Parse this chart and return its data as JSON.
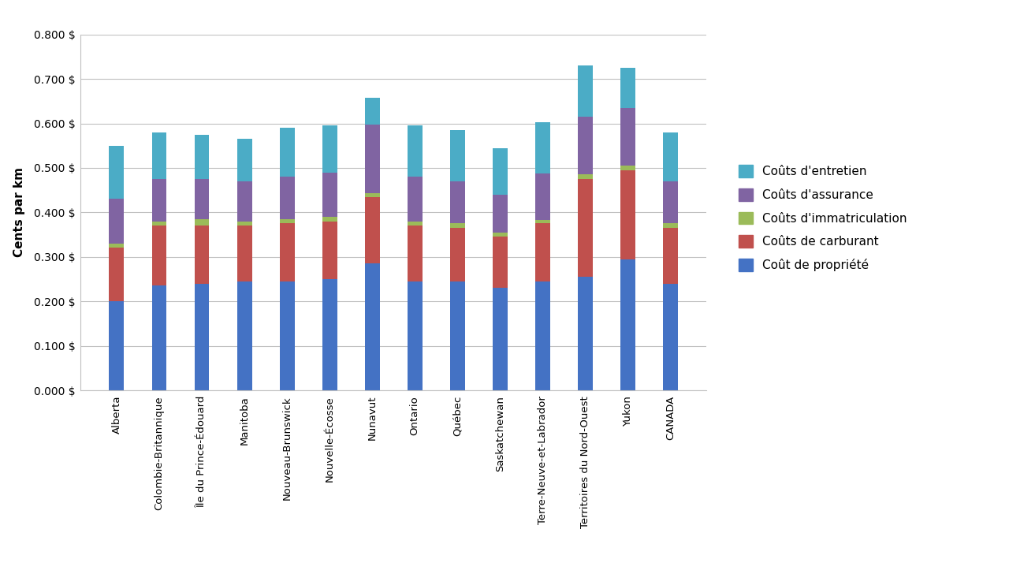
{
  "categories": [
    "Alberta",
    "Colombie-Britannique",
    "Île du Prince-Édouard",
    "Manitoba",
    "Nouveau-Brunswick",
    "Nouvelle-Écosse",
    "Nunavut",
    "Ontario",
    "Québec",
    "Saskatchewan",
    "Terre-Neuve-et-Labrador",
    "Territoires du Nord-Ouest",
    "Yukon",
    "CANADA"
  ],
  "cout_propriete": [
    0.2,
    0.235,
    0.24,
    0.245,
    0.245,
    0.25,
    0.285,
    0.245,
    0.245,
    0.23,
    0.245,
    0.255,
    0.295,
    0.24
  ],
  "cout_carburant": [
    0.12,
    0.135,
    0.13,
    0.125,
    0.13,
    0.13,
    0.15,
    0.125,
    0.12,
    0.115,
    0.13,
    0.22,
    0.2,
    0.125
  ],
  "cout_immatriculation": [
    0.01,
    0.01,
    0.015,
    0.01,
    0.01,
    0.01,
    0.008,
    0.01,
    0.01,
    0.01,
    0.008,
    0.01,
    0.01,
    0.01
  ],
  "cout_assurance": [
    0.1,
    0.095,
    0.09,
    0.09,
    0.095,
    0.1,
    0.155,
    0.1,
    0.095,
    0.085,
    0.105,
    0.13,
    0.13,
    0.095
  ],
  "cout_entretien": [
    0.12,
    0.105,
    0.1,
    0.095,
    0.11,
    0.105,
    0.06,
    0.115,
    0.115,
    0.105,
    0.115,
    0.115,
    0.09,
    0.11
  ],
  "colors": {
    "cout_propriete": "#4472C4",
    "cout_carburant": "#C0504D",
    "cout_immatriculation": "#9BBB59",
    "cout_assurance": "#8064A2",
    "cout_entretien": "#4BACC6"
  },
  "ylabel": "Cents par km",
  "ylim": [
    0.0,
    0.8
  ],
  "yticks": [
    0.0,
    0.1,
    0.2,
    0.3,
    0.4,
    0.5,
    0.6,
    0.7,
    0.8
  ],
  "legend_labels": [
    "Coûts d'entretien",
    "Coûts d'assurance",
    "Coûts d'immatriculation",
    "Coûts de carburant",
    "Coût de propriété"
  ],
  "bar_width": 0.35
}
